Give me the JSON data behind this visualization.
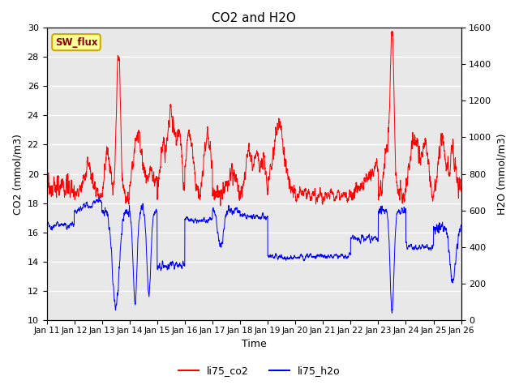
{
  "title": "CO2 and H2O",
  "xlabel": "Time",
  "ylabel_left": "CO2 (mmol/m3)",
  "ylabel_right": "H2O (mmol/m3)",
  "ylim_left": [
    10,
    30
  ],
  "ylim_right": [
    0,
    1600
  ],
  "x_tick_labels": [
    "Jan 11",
    "Jan 12",
    "Jan 13",
    "Jan 14",
    "Jan 15",
    "Jan 16",
    "Jan 17",
    "Jan 18",
    "Jan 19",
    "Jan 20",
    "Jan 21",
    "Jan 22",
    "Jan 23",
    "Jan 24",
    "Jan 25",
    "Jan 26"
  ],
  "legend_labels": [
    "li75_co2",
    "li75_h2o"
  ],
  "legend_colors": [
    "red",
    "blue"
  ],
  "co2_color": "red",
  "h2o_color": "blue",
  "plot_bg_color": "#e8e8e8",
  "grid_color": "white",
  "annotation_text": "SW_flux",
  "annotation_color": "#8b0000",
  "annotation_bg": "#ffff99",
  "annotation_edge": "#ccaa00"
}
